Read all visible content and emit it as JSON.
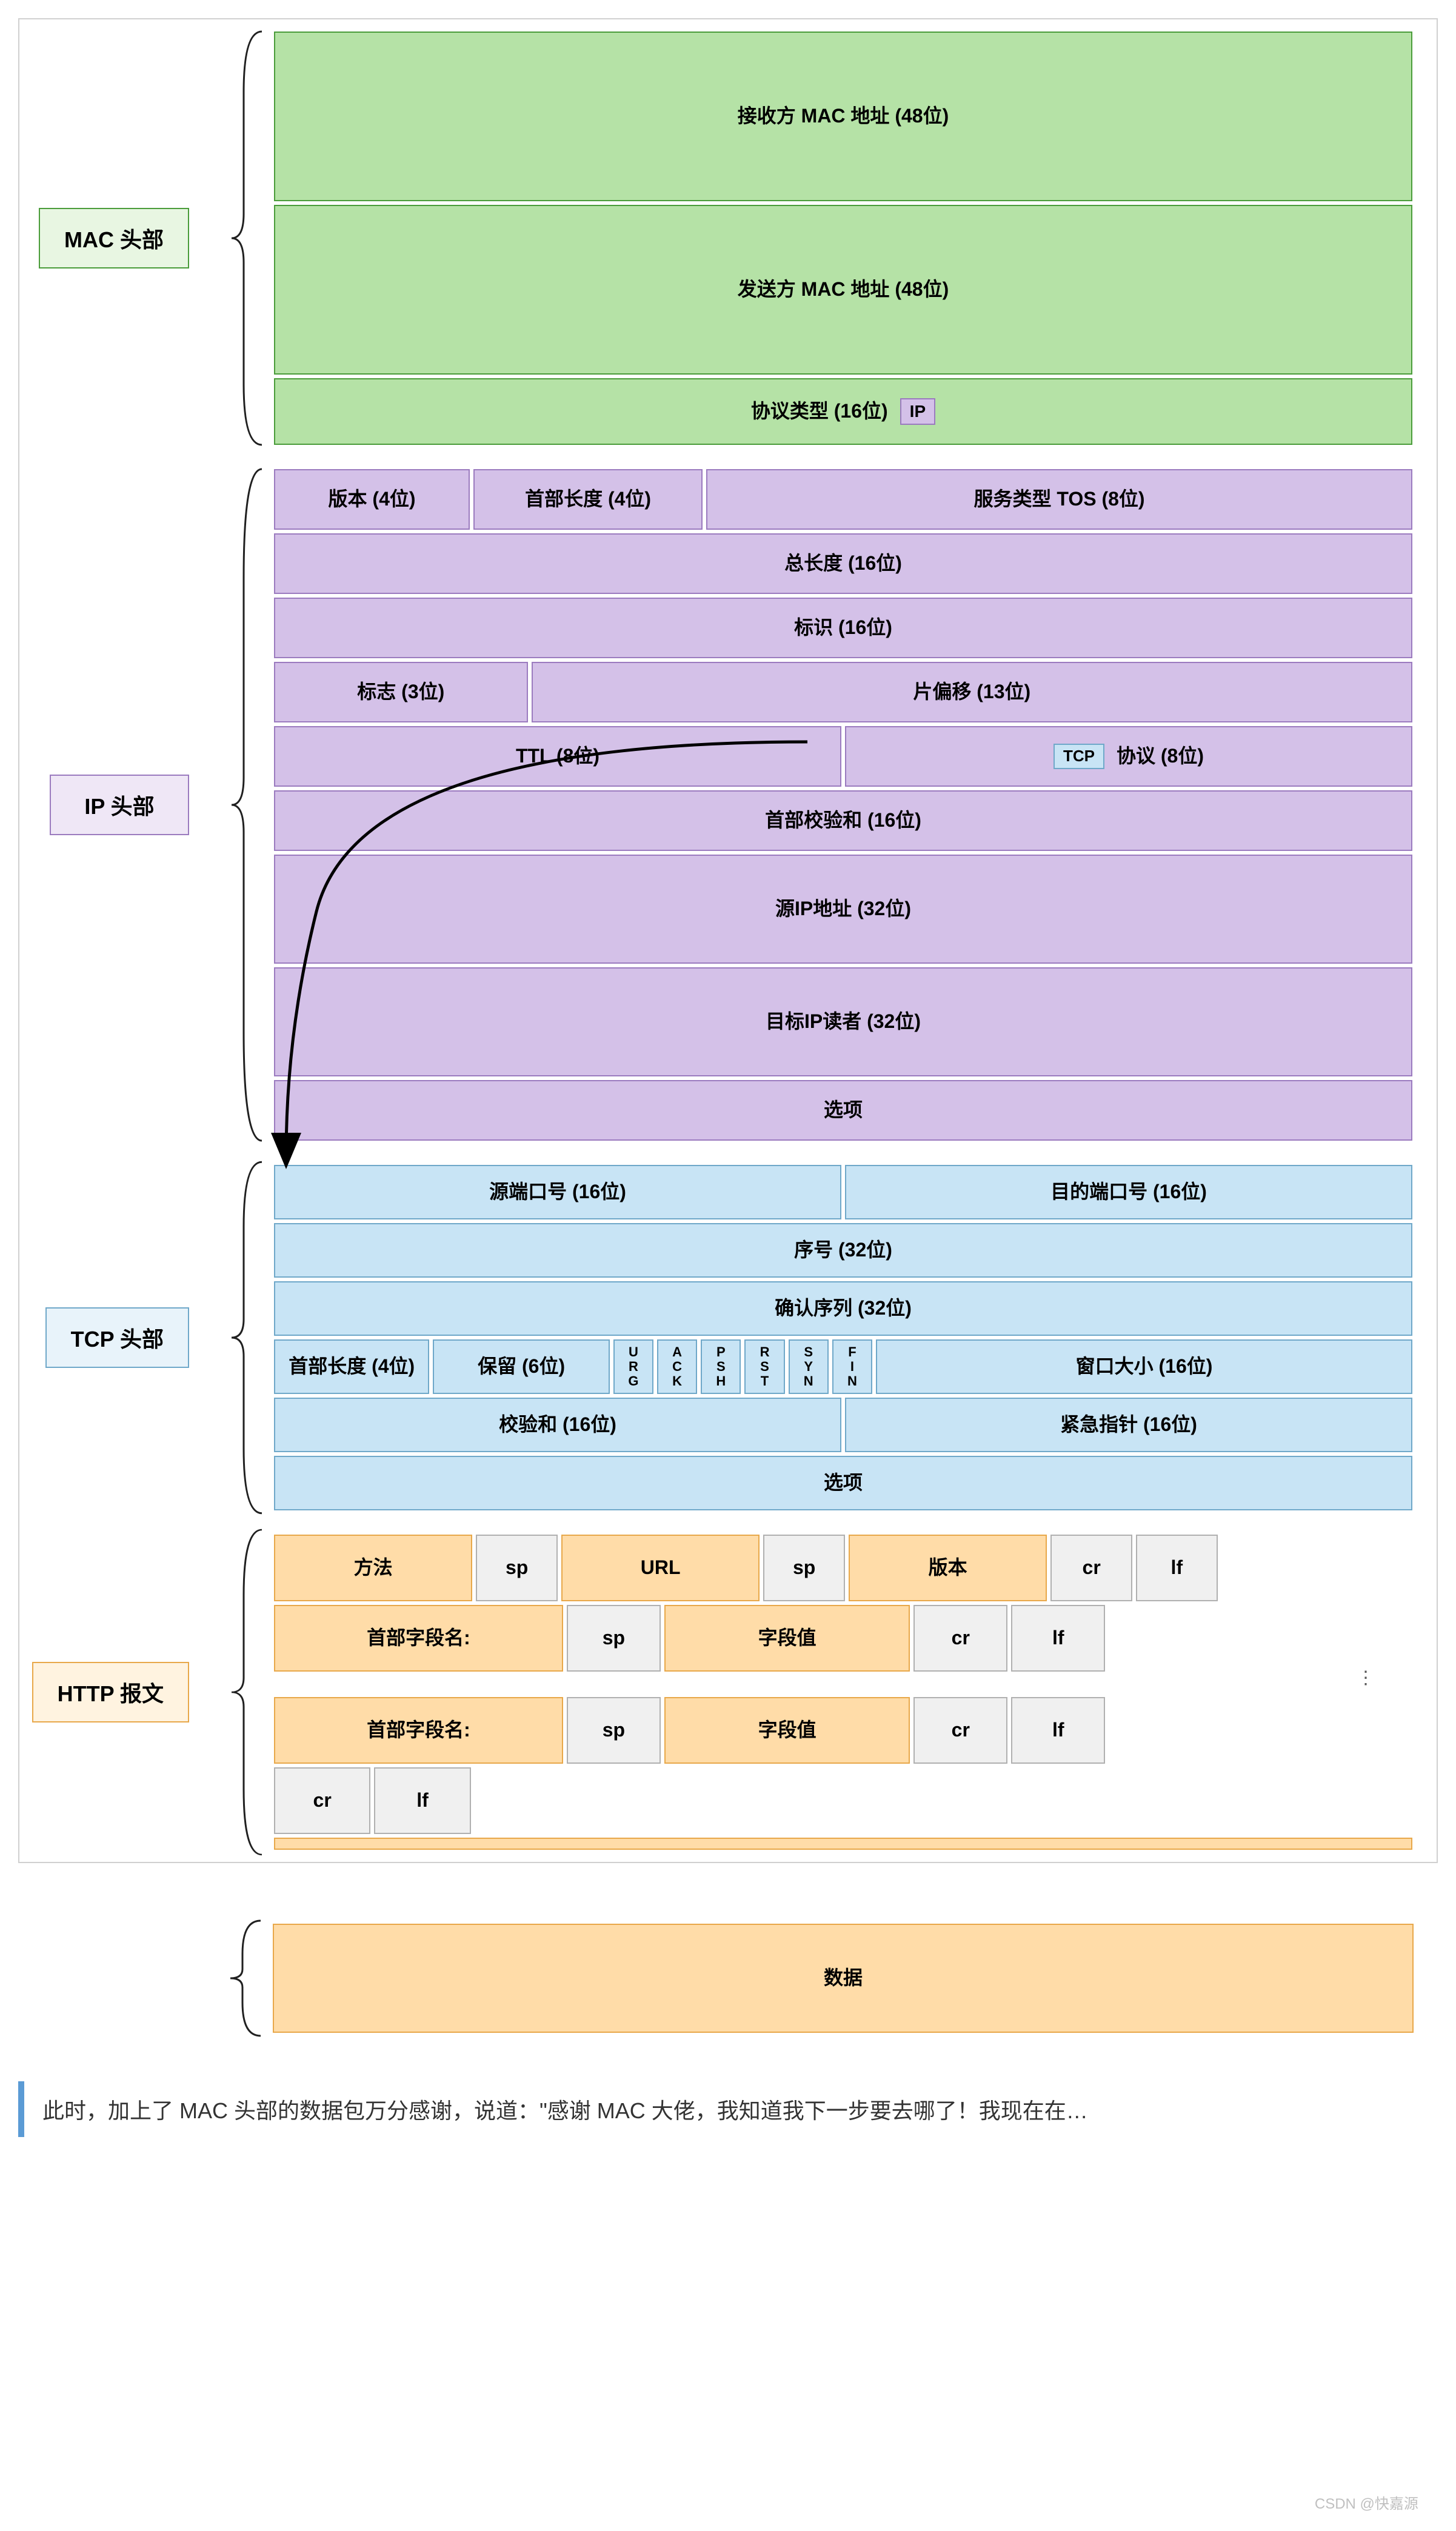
{
  "colors": {
    "mac_fill": "#b5e2a6",
    "mac_border": "#4a9c3a",
    "ip_fill": "#d4c1e8",
    "ip_border": "#9b7bbf",
    "tcp_fill": "#c8e4f5",
    "tcp_border": "#6fa8c9",
    "http_fill": "#ffdca8",
    "http_border": "#e8a84a",
    "http_gray_fill": "#f0f0f0",
    "http_gray_border": "#b0b0b0",
    "ip_tag_fill": "#d4c1e8",
    "ip_tag_border": "#9b7bbf",
    "tcp_tag_fill": "#c8e4f5",
    "tcp_tag_border": "#6fa8c9",
    "arrow": "#000000",
    "brace": "#202020",
    "data_label_border": "#e8a84a"
  },
  "sizes": {
    "mac_row_h_tall": 280,
    "mac_row_h_short": 110,
    "ip_row_h": 100,
    "ip_row_h_tall": 180,
    "tcp_row_h": 90,
    "http_row_h": 110,
    "data_row_h": 180,
    "label_fontsize": 36,
    "cell_fontsize": 32
  },
  "mac": {
    "label": "MAC 头部",
    "rows": [
      {
        "cells": [
          {
            "text": "接收方 MAC 地址 (48位)",
            "w": 1
          }
        ],
        "h": "tall"
      },
      {
        "cells": [
          {
            "text": "发送方 MAC 地址 (48位)",
            "w": 1
          }
        ],
        "h": "tall"
      },
      {
        "cells": [
          {
            "text": "协议类型 (16位)",
            "w": 1,
            "tag": "IP"
          }
        ],
        "h": "short"
      }
    ]
  },
  "ip": {
    "label": "IP 头部",
    "rows": [
      {
        "cells": [
          {
            "text": "版本 (4位)",
            "w": 0.17
          },
          {
            "text": "首部长度 (4位)",
            "w": 0.2
          },
          {
            "text": "服务类型 TOS (8位)",
            "w": 0.63
          }
        ],
        "h": "norm"
      },
      {
        "cells": [
          {
            "text": "总长度 (16位)",
            "w": 1
          }
        ],
        "h": "norm"
      },
      {
        "cells": [
          {
            "text": "标识 (16位)",
            "w": 1
          }
        ],
        "h": "norm"
      },
      {
        "cells": [
          {
            "text": "标志 (3位)",
            "w": 0.22
          },
          {
            "text": "片偏移 (13位)",
            "w": 0.78
          }
        ],
        "h": "norm"
      },
      {
        "cells": [
          {
            "text": "TTL (8位)",
            "w": 0.5
          },
          {
            "text": "协议 (8位)",
            "w": 0.5,
            "pretag": "TCP"
          }
        ],
        "h": "norm"
      },
      {
        "cells": [
          {
            "text": "首部校验和 (16位)",
            "w": 1
          }
        ],
        "h": "norm"
      },
      {
        "cells": [
          {
            "text": "源IP地址 (32位)",
            "w": 1
          }
        ],
        "h": "tall"
      },
      {
        "cells": [
          {
            "text": "目标IP读者 (32位)",
            "w": 1
          }
        ],
        "h": "tall"
      },
      {
        "cells": [
          {
            "text": "选项",
            "w": 1
          }
        ],
        "h": "norm"
      }
    ]
  },
  "tcp": {
    "label": "TCP 头部",
    "rows": [
      {
        "cells": [
          {
            "text": "源端口号 (16位)",
            "w": 0.5
          },
          {
            "text": "目的端口号 (16位)",
            "w": 0.5
          }
        ]
      },
      {
        "cells": [
          {
            "text": "序号 (32位)",
            "w": 1
          }
        ]
      },
      {
        "cells": [
          {
            "text": "确认序列 (32位)",
            "w": 1
          }
        ]
      },
      {
        "type": "flags",
        "left": [
          {
            "text": "首部长度 (4位)",
            "w": 0.14
          },
          {
            "text": "保留 (6位)",
            "w": 0.16
          }
        ],
        "flags": [
          "URG",
          "ACK",
          "PSH",
          "RST",
          "SYN",
          "FIN"
        ],
        "flag_total_w": 0.2,
        "right": {
          "text": "窗口大小 (16位)",
          "w": 0.5
        }
      },
      {
        "cells": [
          {
            "text": "校验和 (16位)",
            "w": 0.5
          },
          {
            "text": "紧急指针 (16位)",
            "w": 0.5
          }
        ]
      },
      {
        "cells": [
          {
            "text": "选项",
            "w": 1
          }
        ]
      }
    ]
  },
  "http": {
    "label": "HTTP 报文",
    "line1": [
      {
        "text": "方法",
        "w": 0.18,
        "style": "o"
      },
      {
        "text": "sp",
        "w": 0.07,
        "style": "g"
      },
      {
        "text": "URL",
        "w": 0.18,
        "style": "o"
      },
      {
        "text": "sp",
        "w": 0.07,
        "style": "g"
      },
      {
        "text": "版本",
        "w": 0.18,
        "style": "o"
      },
      {
        "text": "cr",
        "w": 0.07,
        "style": "g"
      },
      {
        "text": "lf",
        "w": 0.07,
        "style": "g"
      }
    ],
    "line2": [
      {
        "text": "首部字段名:",
        "w": 0.26,
        "style": "o"
      },
      {
        "text": "sp",
        "w": 0.08,
        "style": "g"
      },
      {
        "text": "字段值",
        "w": 0.22,
        "style": "o"
      },
      {
        "text": "cr",
        "w": 0.08,
        "style": "g"
      },
      {
        "text": "lf",
        "w": 0.08,
        "style": "g"
      }
    ],
    "line3": [
      {
        "text": "首部字段名:",
        "w": 0.26,
        "style": "o"
      },
      {
        "text": "sp",
        "w": 0.08,
        "style": "g"
      },
      {
        "text": "字段值",
        "w": 0.22,
        "style": "o"
      },
      {
        "text": "cr",
        "w": 0.08,
        "style": "g"
      },
      {
        "text": "lf",
        "w": 0.08,
        "style": "g"
      }
    ],
    "line4": [
      {
        "text": "cr",
        "w": 0.08,
        "style": "g"
      },
      {
        "text": "lf",
        "w": 0.08,
        "style": "g"
      }
    ]
  },
  "data": {
    "label": "数据"
  },
  "bottom_text": "此时，加上了 MAC 头部的数据包万分感谢，说道：\"感谢 MAC 大佬，我知道我下一步要去哪了！我现在在…",
  "watermark": "CSDN @快嘉源ㅤ"
}
